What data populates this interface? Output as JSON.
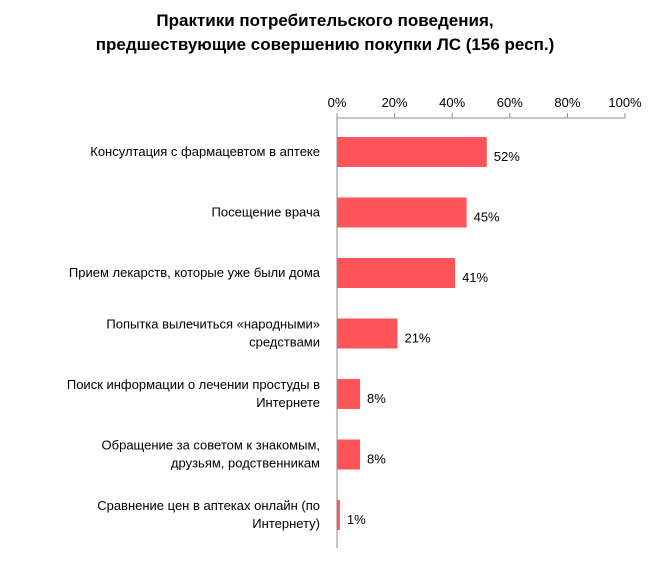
{
  "chart_data": {
    "type": "bar",
    "orientation": "horizontal",
    "title_lines": [
      "Практики потребительского поведения,",
      "предшествующие совершению покупки ЛС (156 респ.)"
    ],
    "categories": [
      [
        "Консултация с фармацевтом в аптеке"
      ],
      [
        "Посещение врача"
      ],
      [
        "Прием лекарств, которые уже были дома"
      ],
      [
        "Попытка вылечиться «народными»",
        "средствами"
      ],
      [
        "Поиск информации о лечении простуды в",
        "Интернете"
      ],
      [
        "Обращение за советом к знакомым,",
        "друзьям, родственникам"
      ],
      [
        "Сравнение цен в аптеках онлайн (по",
        "Интернету)"
      ]
    ],
    "values": [
      52,
      45,
      41,
      21,
      8,
      8,
      1
    ],
    "value_labels": [
      "52%",
      "45%",
      "41%",
      "21%",
      "8%",
      "8%",
      "1%"
    ],
    "x_ticks": [
      0,
      20,
      40,
      60,
      80,
      100
    ],
    "x_tick_labels": [
      "0%",
      "20%",
      "40%",
      "60%",
      "80%",
      "100%"
    ],
    "xlim": [
      0,
      100
    ],
    "x_axis_position": "top",
    "grid": false,
    "bar_color": "#ff5459",
    "axis_color": "#8c8c8c"
  }
}
